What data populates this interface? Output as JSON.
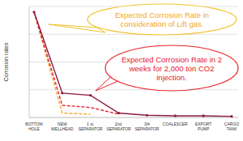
{
  "chart_data": {
    "type": "line",
    "y_label": "Corrosion rates",
    "categories": [
      "BOTTOM HOLE",
      "NEW WELLHEAD",
      "1 st. SEPARATOR",
      "2nd. SEPARATOR",
      "3/4 SEPARATOR",
      "COALESCER",
      "EXPORT PUMP",
      "CARGO TANK"
    ],
    "series": [
      {
        "color": "#8b1a3c",
        "line_style": "solid",
        "marker": "circle",
        "values": [
          95,
          22,
          20,
          4,
          2,
          1.5,
          1.5,
          1
        ]
      },
      {
        "color": "#e8202a",
        "line_style": "dashed",
        "marker": "none",
        "values": [
          95,
          11,
          9,
          3,
          null,
          null,
          null,
          null
        ]
      },
      {
        "color": "#f5a623",
        "line_style": "dashed",
        "marker": "none",
        "values": [
          95,
          4,
          3,
          null,
          null,
          null,
          null,
          null
        ]
      }
    ],
    "ylim": [
      0,
      100
    ],
    "yticks": [
      0,
      25,
      50,
      75,
      100
    ],
    "grid": true,
    "tick_labels": "x",
    "annotations": [
      {
        "text_lines": [
          "Expected Corrosion Rate in",
          "consideration of Lift gas."
        ],
        "color": "#f5a623"
      },
      {
        "text_lines": [
          "Expected Corrosion Rate in 2",
          "weeks for 2,000 ton CO2",
          "injection."
        ],
        "color": "#e8202a"
      }
    ]
  }
}
